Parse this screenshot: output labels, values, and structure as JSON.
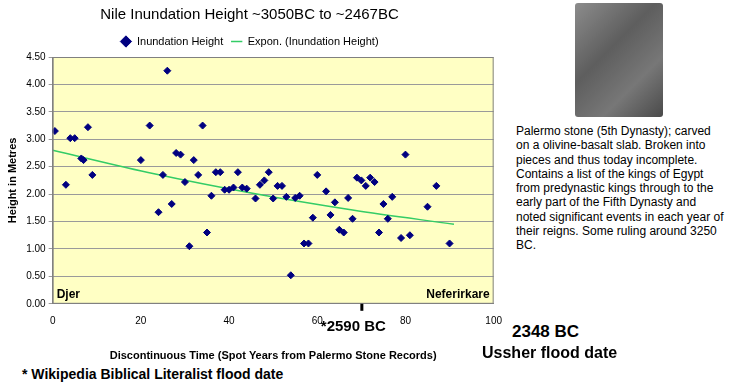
{
  "chart_data": {
    "type": "scatter",
    "title": "Nile Inundation Height ~3050BC to ~2467BC",
    "x_label": "Discontinuous Time (Spot Years from Palermo Stone Records)",
    "y_label": "Height in Metres",
    "series": [
      {
        "name": "Inundation Height",
        "type": "scatter",
        "color": "#000080",
        "marker": "diamond",
        "x": [
          0.5,
          3,
          4,
          5,
          6.5,
          7,
          8,
          9,
          20,
          22,
          24,
          25,
          26,
          27,
          28,
          29,
          30,
          31,
          32,
          33,
          34,
          35,
          36,
          37,
          38,
          39,
          40,
          41,
          42,
          43,
          44,
          46,
          47,
          48,
          49,
          50,
          51,
          52,
          53,
          54,
          55,
          56,
          57,
          58,
          59,
          60,
          62,
          63,
          64,
          65,
          66,
          67,
          68,
          69,
          70,
          71,
          72,
          73,
          74,
          75,
          76,
          77,
          79,
          80,
          81,
          85,
          87,
          90
        ],
        "values": [
          3.15,
          2.17,
          3.02,
          3.02,
          2.65,
          2.62,
          3.22,
          2.35,
          2.62,
          3.25,
          1.67,
          2.35,
          4.25,
          1.82,
          2.75,
          2.72,
          2.22,
          1.05,
          2.62,
          2.35,
          3.25,
          1.3,
          1.97,
          2.4,
          2.4,
          2.08,
          2.08,
          2.12,
          2.4,
          2.12,
          2.1,
          1.92,
          2.17,
          2.25,
          2.4,
          1.92,
          2.15,
          2.15,
          1.95,
          0.52,
          1.93,
          1.97,
          1.1,
          1.1,
          1.57,
          2.35,
          2.05,
          1.62,
          1.85,
          1.35,
          1.3,
          1.93,
          1.55,
          2.3,
          2.25,
          2.15,
          2.3,
          2.22,
          1.3,
          1.82,
          1.55,
          1.95,
          1.2,
          2.72,
          1.25,
          1.77,
          2.15,
          1.1
        ]
      },
      {
        "name": "Expon. (Inundation Height)",
        "type": "line",
        "color": "#33cc66",
        "line_style": "solid",
        "x": [
          0,
          23,
          45,
          68,
          91
        ],
        "values": [
          2.8,
          2.37,
          2.02,
          1.71,
          1.45
        ]
      }
    ],
    "xlim": [
      0,
      100
    ],
    "xticks": [
      0,
      20,
      40,
      60,
      80,
      100
    ],
    "ylim": [
      0,
      4.5
    ],
    "yticks": [
      {
        "value": 0,
        "label": "0.00"
      },
      {
        "value": 0.5,
        "label": "0.50"
      },
      {
        "value": 1,
        "label": "1.00"
      },
      {
        "value": 1.5,
        "label": "1.50"
      },
      {
        "value": 2,
        "label": "2.00"
      },
      {
        "value": 2.5,
        "label": "2.50"
      },
      {
        "value": 3,
        "label": "3.00"
      },
      {
        "value": 3.5,
        "label": "3.50"
      },
      {
        "value": 4,
        "label": "4.00"
      },
      {
        "value": 4.5,
        "label": "4.50"
      }
    ],
    "grid": true,
    "legend": "top",
    "annotations": [
      "Djer",
      "Neferirkare",
      "*2590 BC",
      "2348 BC",
      "Ussher flood date",
      "* Wikipedia Biblical Literalist flood date"
    ],
    "caption": "Palermo stone (5th Dynasty); carved on a olivine-basalt slab. Broken into pieces and thus today incomplete. Contains a list of the kings of Egypt from predynastic kings through to the early part of the Fifth Dynasty and noted significant events in each year of their reigns. Some ruling around 3250 BC."
  }
}
